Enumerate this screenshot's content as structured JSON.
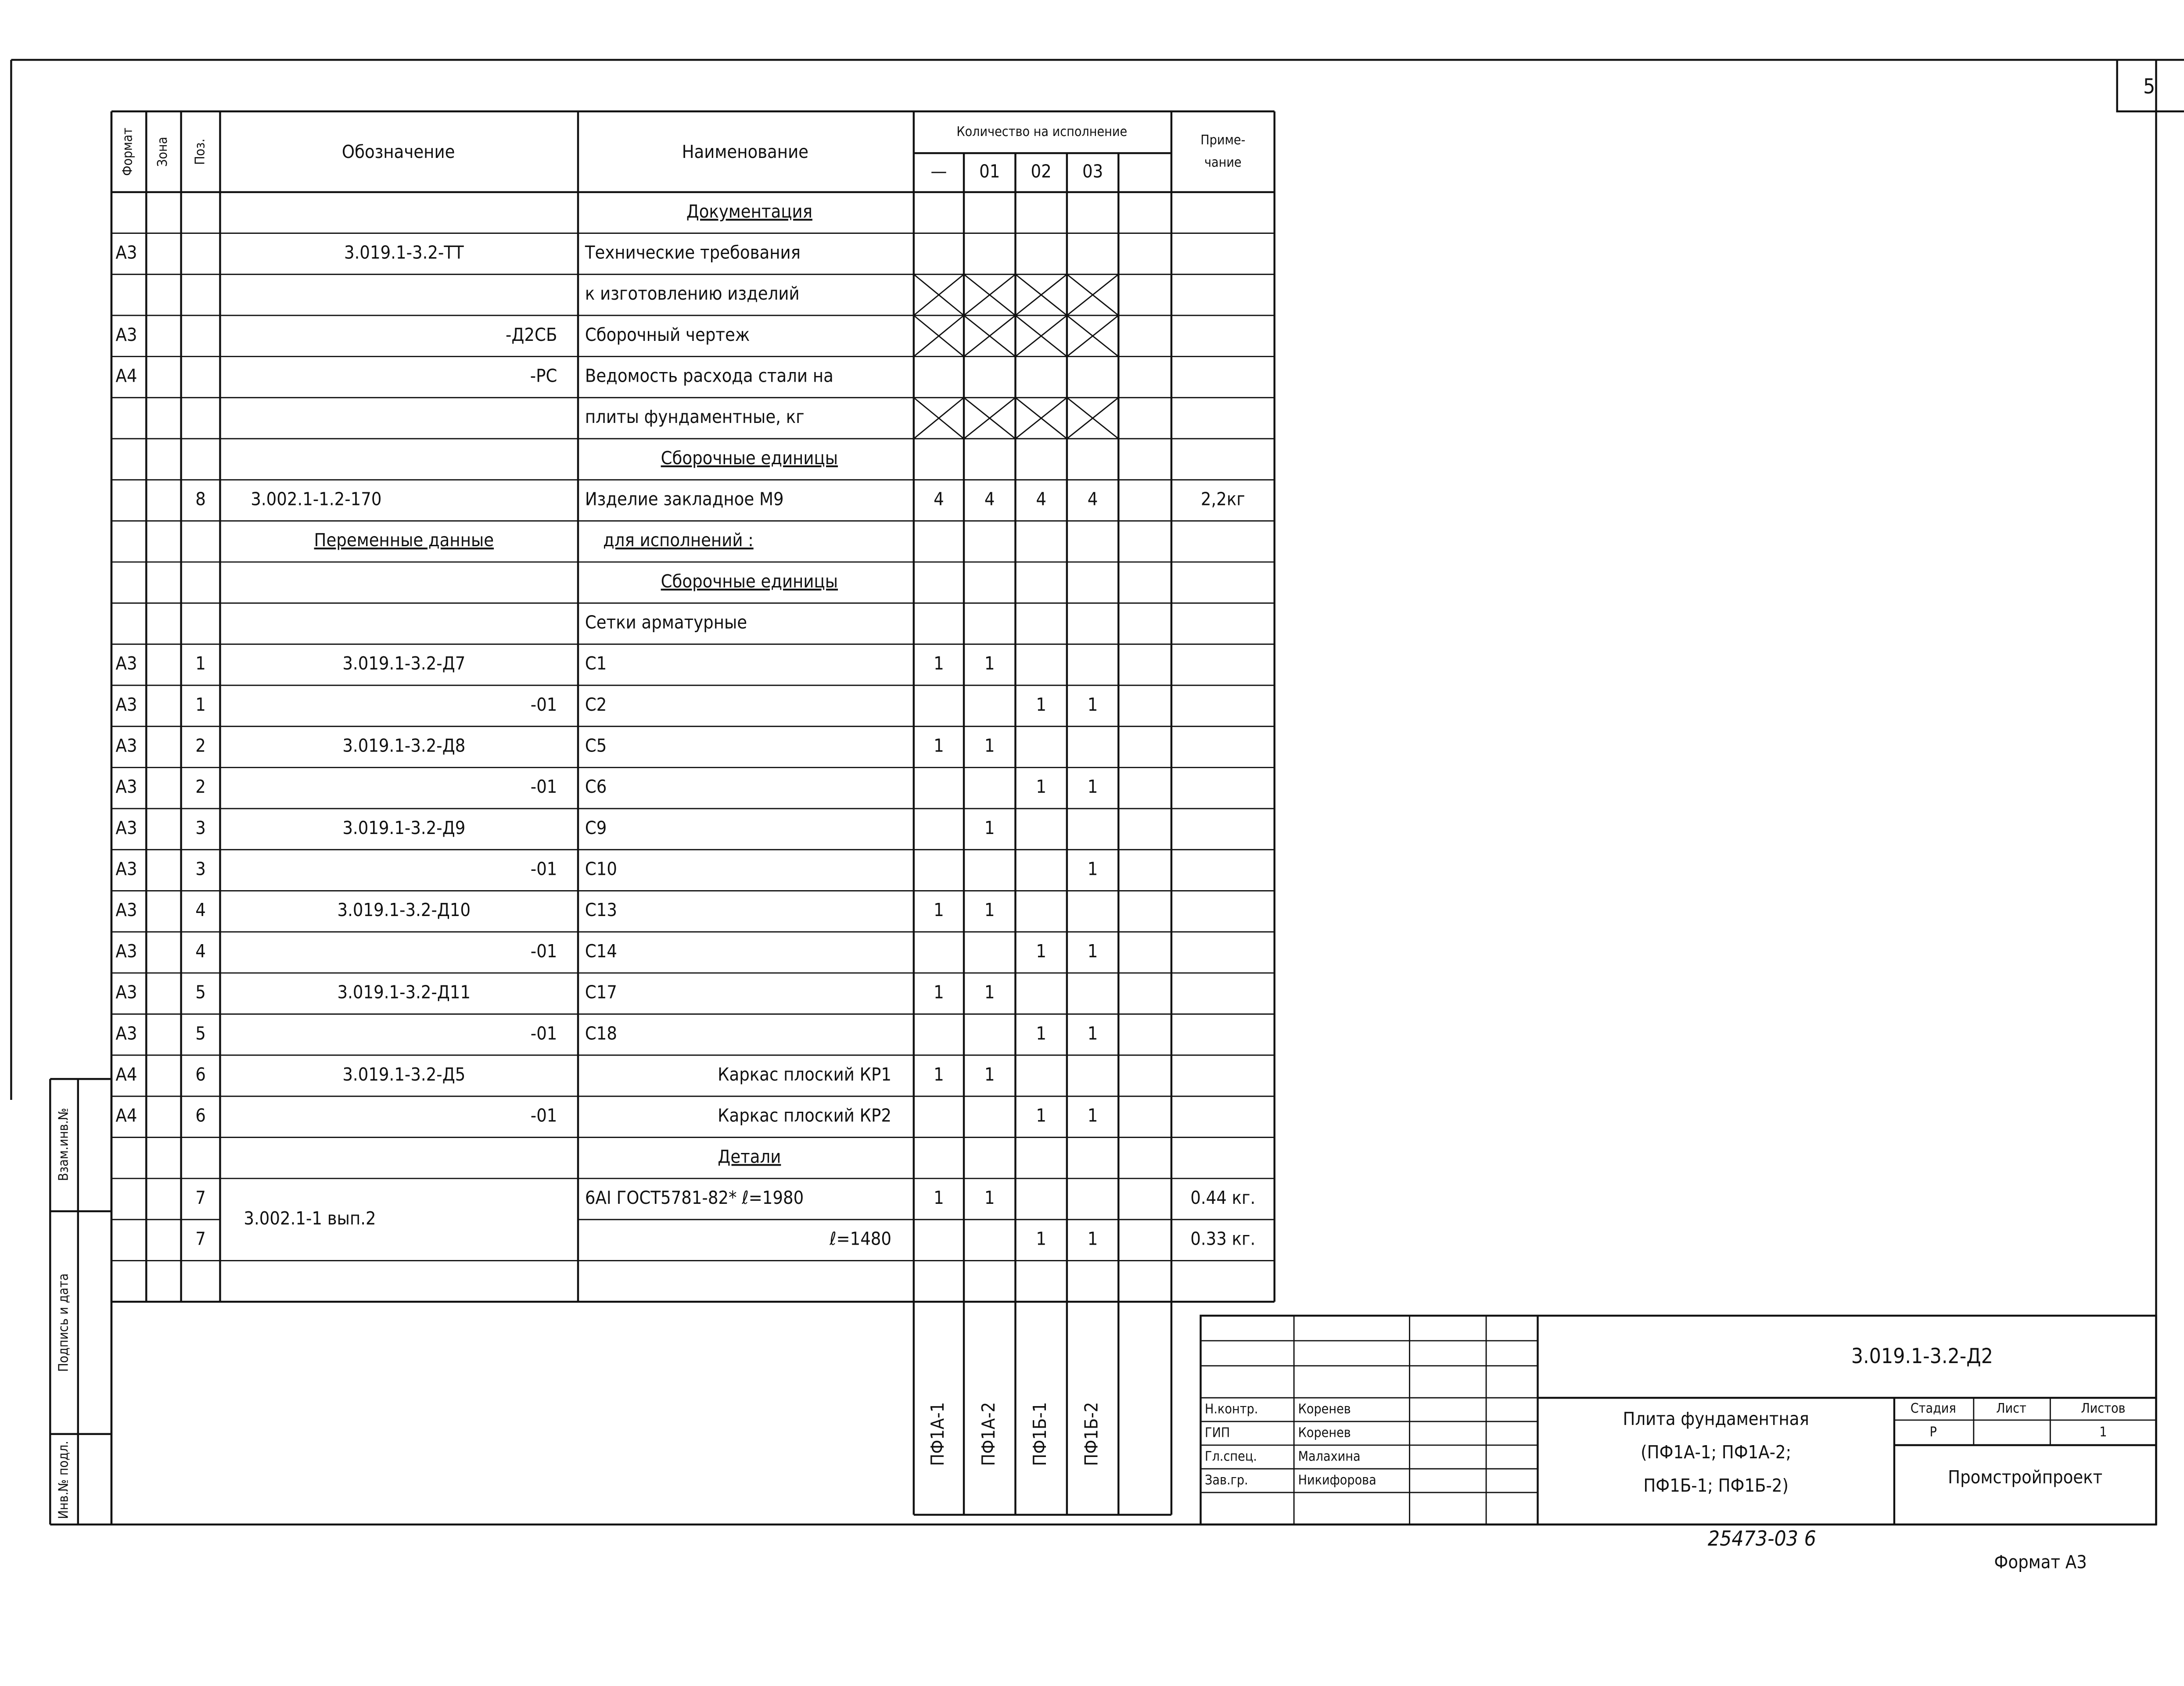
{
  "sheet_number": "5",
  "header": {
    "format": "Формат",
    "zone": "Зона",
    "pos": "Поз.",
    "designation": "Обозначение",
    "name": "Наименование",
    "quantity": "Количество на исполнение",
    "variants": [
      "—",
      "01",
      "02",
      "03"
    ],
    "note": [
      "Приме-",
      "чание"
    ]
  },
  "rows": [
    {
      "name": "Документация"
    },
    {
      "format": "А3",
      "designation": "3.019.1-3.2-ТТ",
      "name": "Технические требования"
    },
    {
      "name": "к изготовлению изделий"
    },
    {
      "format": "А3",
      "designation": "-Д2СБ",
      "name": "Сборочный чертеж"
    },
    {
      "format": "А4",
      "designation": "-РС",
      "name": "Ведомость расхода стали на"
    },
    {
      "name": "плиты фундаментные, кг"
    },
    {
      "name": "Сборочные единицы"
    },
    {
      "pos": "8",
      "designation": "3.002.1-1.2-170",
      "name": "Изделие закладное М9",
      "qty": [
        4,
        4,
        4,
        4
      ],
      "note": "2,2кг"
    },
    {
      "designation": "Переменные данные",
      "name": "для исполнений :"
    },
    {
      "name": "Сборочные единицы"
    },
    {
      "name": "Сетки арматурные"
    },
    {
      "format": "А3",
      "pos": "1",
      "designation": "3.019.1-3.2-Д7",
      "name": "С1",
      "qty": [
        1,
        1,
        null,
        null
      ]
    },
    {
      "format": "А3",
      "pos": "1",
      "designation": "-01",
      "name": "С2",
      "qty": [
        null,
        null,
        1,
        1
      ]
    },
    {
      "format": "А3",
      "pos": "2",
      "designation": "3.019.1-3.2-Д8",
      "name": "С5",
      "qty": [
        1,
        1,
        null,
        null
      ]
    },
    {
      "format": "А3",
      "pos": "2",
      "designation": "-01",
      "name": "С6",
      "qty": [
        null,
        null,
        1,
        1
      ]
    },
    {
      "format": "А3",
      "pos": "3",
      "designation": "3.019.1-3.2-Д9",
      "name": "С9",
      "qty": [
        null,
        1,
        null,
        null
      ]
    },
    {
      "format": "А3",
      "pos": "3",
      "designation": "-01",
      "name": "С10",
      "qty": [
        null,
        null,
        null,
        1
      ]
    },
    {
      "format": "А3",
      "pos": "4",
      "designation": "3.019.1-3.2-Д10",
      "name": "С13",
      "qty": [
        1,
        1,
        null,
        null
      ]
    },
    {
      "format": "А3",
      "pos": "4",
      "designation": "-01",
      "name": "С14",
      "qty": [
        null,
        null,
        1,
        1
      ]
    },
    {
      "format": "А3",
      "pos": "5",
      "designation": "3.019.1-3.2-Д11",
      "name": "С17",
      "qty": [
        1,
        1,
        null,
        null
      ]
    },
    {
      "format": "А3",
      "pos": "5",
      "designation": "-01",
      "name": "С18",
      "qty": [
        null,
        null,
        1,
        1
      ]
    },
    {
      "format": "А4",
      "pos": "6",
      "designation": "3.019.1-3.2-Д5",
      "name": "Каркас плоский КР1",
      "qty": [
        1,
        1,
        null,
        null
      ]
    },
    {
      "format": "А4",
      "pos": "6",
      "designation": "-01",
      "name": "Каркас плоский КР2",
      "qty": [
        null,
        null,
        1,
        1
      ]
    },
    {
      "name": "Детали"
    },
    {
      "pos": "7",
      "designation": "3.002.1-1 вып.2",
      "name": "6АI ГОСТ5781-82* ℓ=1980",
      "qty": [
        1,
        1,
        null,
        null
      ],
      "note": "0.44 кг."
    },
    {
      "pos": "7",
      "name": "ℓ=1480",
      "qty": [
        null,
        null,
        1,
        1
      ],
      "note": "0.33 кг."
    }
  ],
  "variant_names": [
    "ПФ1А-1",
    "ПФ1А-2",
    "ПФ1Б-1",
    "ПФ1Б-2"
  ],
  "side_stamp": [
    "Инв.№ подл.",
    "Подпись и дата",
    "Взам.инв.№"
  ],
  "title_block": {
    "designation": "3.019.1-3.2-Д2",
    "signatures": [
      {
        "role": "Н.контр.",
        "name": "Коренев"
      },
      {
        "role": "ГИП",
        "name": "Коренев"
      },
      {
        "role": "Гл.спец.",
        "name": "Малахина"
      },
      {
        "role": "Зав.гр.",
        "name": "Никифорова"
      }
    ],
    "title": [
      "Плита фундаментная",
      "(ПФ1А-1; ПФ1А-2;",
      "ПФ1Б-1; ПФ1Б-2)"
    ],
    "stage_headers": [
      "Стадия",
      "Лист",
      "Листов"
    ],
    "stage": "Р",
    "sheets": 1,
    "organization": "Промстройпроект"
  },
  "footer": {
    "inventory": "25473-03 6",
    "format": "Формат А3"
  }
}
